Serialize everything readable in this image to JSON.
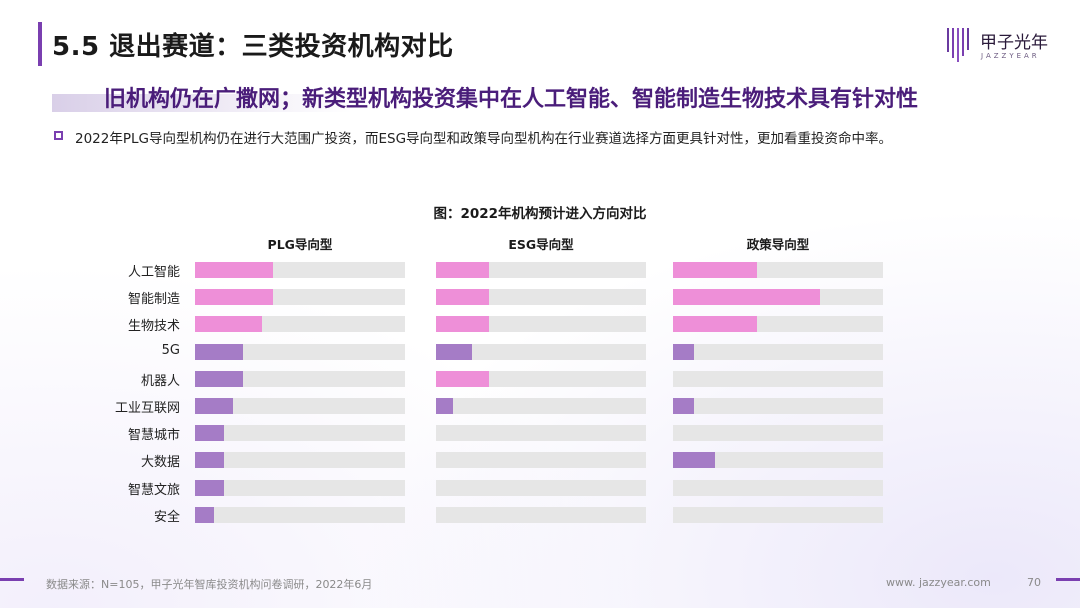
{
  "header": {
    "title": "5.5 退出赛道：三类投资机构对比",
    "logo_name": "甲子光年",
    "logo_sub": "JAZZYEAR"
  },
  "subtitle": "旧机构仍在广撒网；新类型机构投资集中在人工智能、智能制造生物技术具有针对性",
  "bullet": "2022年PLG导向型机构仍在进行大范围广投资，而ESG导向型和政策导向型机构在行业赛道选择方面更具针对性，更加看重投资命中率。",
  "colors": {
    "pink": "#ee8fd8",
    "purple": "#a57cc6",
    "track": "#e6e6e6",
    "accent": "#7a3fb0"
  },
  "chart_data": {
    "type": "bar",
    "orientation": "horizontal",
    "title": "图：2022年机构预计进入方向对比",
    "categories": [
      "人工智能",
      "智能制造",
      "生物技术",
      "5G",
      "机器人",
      "工业互联网",
      "智慧城市",
      "大数据",
      "智慧文旅",
      "安全"
    ],
    "xlim": [
      0,
      100
    ],
    "series": [
      {
        "name": "PLG导向型",
        "values": [
          37,
          37,
          32,
          23,
          23,
          18,
          14,
          14,
          14,
          9
        ],
        "highlight": [
          true,
          true,
          true,
          false,
          false,
          false,
          false,
          false,
          false,
          false
        ]
      },
      {
        "name": "ESG导向型",
        "values": [
          25,
          25,
          25,
          17,
          25,
          8,
          0,
          0,
          0,
          0
        ],
        "highlight": [
          true,
          true,
          true,
          false,
          true,
          false,
          false,
          false,
          false,
          false
        ]
      },
      {
        "name": "政策导向型",
        "values": [
          40,
          70,
          40,
          10,
          0,
          10,
          0,
          20,
          0,
          0
        ],
        "highlight": [
          true,
          true,
          true,
          false,
          false,
          false,
          false,
          false,
          false,
          false
        ]
      }
    ]
  },
  "footer": {
    "source": "数据来源：N=105，甲子光年智库投资机构问卷调研，2022年6月",
    "url": "www. jazzyear.com",
    "page": "70"
  }
}
